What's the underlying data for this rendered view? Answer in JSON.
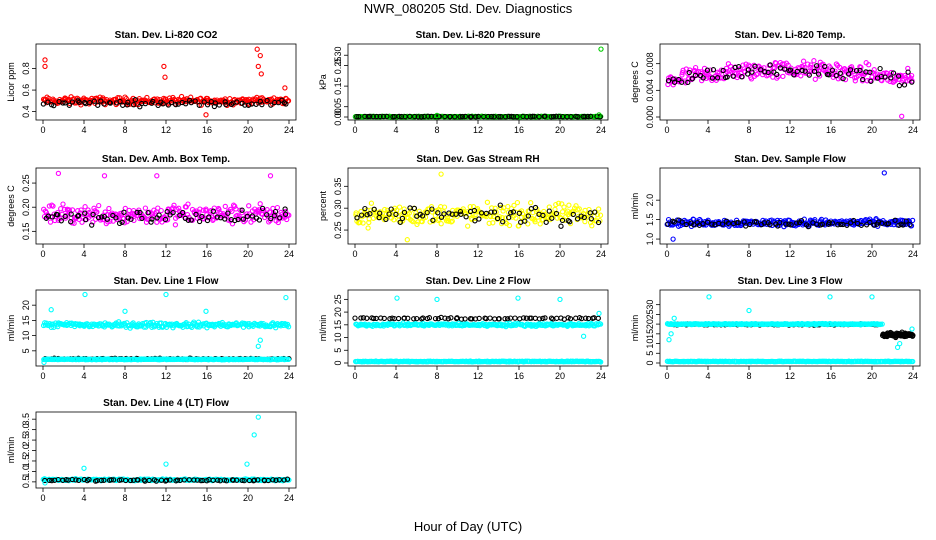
{
  "figure": {
    "title": "NWR_080205  Std. Dev. Diagnostics",
    "xlabel": "Hour of Day (UTC)"
  },
  "chart_data": [
    {
      "type": "scatter",
      "title": "Stan. Dev. Li-820 CO2",
      "ylabel": "Licor ppm",
      "xlim": [
        0,
        24
      ],
      "xticks": [
        "0",
        "4",
        "8",
        "12",
        "16",
        "20",
        "24"
      ],
      "yticks": [
        "0.4",
        "0.6",
        "0.8"
      ],
      "ylim": [
        0.35,
        1.0
      ],
      "colors": {
        "main": "#ff0000",
        "cal": "#000000"
      },
      "series": [
        {
          "role": "main",
          "base": 0.5,
          "spread": 0.05
        },
        {
          "role": "cal",
          "base": 0.48,
          "spread": 0.04
        }
      ],
      "outliers": [
        {
          "x": 0.2,
          "y": 0.88
        },
        {
          "x": 0.2,
          "y": 0.82
        },
        {
          "x": 11.8,
          "y": 0.82
        },
        {
          "x": 11.9,
          "y": 0.72
        },
        {
          "x": 20.9,
          "y": 0.98
        },
        {
          "x": 21.2,
          "y": 0.92
        },
        {
          "x": 21.0,
          "y": 0.82
        },
        {
          "x": 21.3,
          "y": 0.75
        },
        {
          "x": 15.9,
          "y": 0.37
        },
        {
          "x": 23.6,
          "y": 0.62
        }
      ]
    },
    {
      "type": "scatter",
      "title": "Stan. Dev. Li-820 Pressure",
      "ylabel": "kPa",
      "xlim": [
        0,
        24
      ],
      "xticks": [
        "0",
        "4",
        "8",
        "12",
        "16",
        "20",
        "24"
      ],
      "yticks": [
        "0.00",
        "0.05",
        "0.15",
        "0.25",
        "0.30"
      ],
      "ylim": [
        0,
        0.34
      ],
      "colors": {
        "main": "#00cc00",
        "cal": "#000000"
      },
      "series": [
        {
          "role": "main",
          "base": 0.002,
          "spread": 0.002
        },
        {
          "role": "cal",
          "base": 0.002,
          "spread": 0.002
        }
      ],
      "outliers": [
        {
          "x": 24.0,
          "y": 0.33
        },
        {
          "x": 8.0,
          "y": 0.008
        },
        {
          "x": 23.8,
          "y": 0.01
        }
      ]
    },
    {
      "type": "scatter",
      "title": "Stan. Dev. Li-820 Temp.",
      "ylabel": "degrees C",
      "xlim": [
        0,
        24
      ],
      "xticks": [
        "0",
        "4",
        "8",
        "12",
        "16",
        "20",
        "24"
      ],
      "yticks": [
        "0.000",
        "0.004",
        "0.008"
      ],
      "ylim": [
        0,
        0.0105
      ],
      "colors": {
        "main": "#ff00ff",
        "cal": "#000000"
      },
      "series": [
        {
          "role": "main",
          "base": 0.006,
          "spread": 0.002,
          "trend": "hump"
        },
        {
          "role": "cal",
          "base": 0.006,
          "spread": 0.0015,
          "trend": "hump"
        }
      ],
      "outliers": [
        {
          "x": 22.9,
          "y": 0.0001
        }
      ]
    },
    {
      "type": "scatter",
      "title": "Stan. Dev. Amb. Box Temp.",
      "ylabel": "degrees C",
      "xlim": [
        0,
        24
      ],
      "xticks": [
        "0",
        "4",
        "8",
        "12",
        "16",
        "20",
        "24"
      ],
      "yticks": [
        "0.15",
        "0.20",
        "0.25"
      ],
      "ylim": [
        0.13,
        0.275
      ],
      "colors": {
        "main": "#ff00ff",
        "cal": "#000000"
      },
      "series": [
        {
          "role": "main",
          "base": 0.185,
          "spread": 0.03
        },
        {
          "role": "cal",
          "base": 0.18,
          "spread": 0.022
        }
      ],
      "outliers": [
        {
          "x": 1.5,
          "y": 0.27
        },
        {
          "x": 6.0,
          "y": 0.265
        },
        {
          "x": 11.1,
          "y": 0.265
        },
        {
          "x": 22.2,
          "y": 0.265
        }
      ]
    },
    {
      "type": "scatter",
      "title": "Stan. Dev. Gas Stream RH",
      "ylabel": "percent",
      "xlim": [
        0,
        24
      ],
      "xticks": [
        "0",
        "4",
        "8",
        "12",
        "16",
        "20",
        "24"
      ],
      "yticks": [
        "0.25",
        "0.30",
        "0.35"
      ],
      "ylim": [
        0.225,
        0.385
      ],
      "colors": {
        "main": "#ffff00",
        "cal": "#000000"
      },
      "series": [
        {
          "role": "main",
          "base": 0.285,
          "spread": 0.035
        },
        {
          "role": "cal",
          "base": 0.285,
          "spread": 0.03
        }
      ],
      "outliers": [
        {
          "x": 5.1,
          "y": 0.228
        },
        {
          "x": 8.4,
          "y": 0.378
        }
      ]
    },
    {
      "type": "scatter",
      "title": "Stan. Dev. Sample Flow",
      "ylabel": "ml/min",
      "xlim": [
        0,
        24
      ],
      "xticks": [
        "0",
        "4",
        "8",
        "12",
        "16",
        "20",
        "24"
      ],
      "yticks": [
        "1.0",
        "1.5",
        "2.0"
      ],
      "ylim": [
        0.95,
        2.75
      ],
      "colors": {
        "main": "#0000ff",
        "cal": "#000000"
      },
      "series": [
        {
          "role": "main",
          "base": 1.42,
          "spread": 0.13
        },
        {
          "role": "cal",
          "base": 1.4,
          "spread": 0.1
        }
      ],
      "outliers": [
        {
          "x": 21.2,
          "y": 2.7
        },
        {
          "x": 0.6,
          "y": 1.0
        }
      ]
    },
    {
      "type": "scatter",
      "title": "Stan. Dev. Line 1 Flow",
      "ylabel": "ml/min",
      "xlim": [
        0,
        24
      ],
      "xticks": [
        "0",
        "4",
        "8",
        "12",
        "16",
        "20",
        "24"
      ],
      "yticks": [
        "5",
        "10",
        "15",
        "20"
      ],
      "ylim": [
        1,
        24
      ],
      "colors": {
        "main": "#00ffff",
        "cal": "#000000"
      },
      "series": [
        {
          "role": "main",
          "base": 13.5,
          "spread": 1.3
        },
        {
          "role": "cal",
          "base": 2.4,
          "spread": 0.3
        },
        {
          "role": "main",
          "base": 2.2,
          "spread": 0.2
        }
      ],
      "outliers": [
        {
          "x": 0.8,
          "y": 18.5
        },
        {
          "x": 4.1,
          "y": 23.5
        },
        {
          "x": 8.0,
          "y": 18.0
        },
        {
          "x": 12.0,
          "y": 23.5
        },
        {
          "x": 15.9,
          "y": 18.0
        },
        {
          "x": 21.0,
          "y": 6.5
        },
        {
          "x": 21.2,
          "y": 8.5
        },
        {
          "x": 23.7,
          "y": 22.5
        },
        {
          "x": 0.1,
          "y": 1.2
        }
      ]
    },
    {
      "type": "scatter",
      "title": "Stan. Dev. Line 2 Flow",
      "ylabel": "ml/min",
      "xlim": [
        0,
        24
      ],
      "xticks": [
        "0",
        "4",
        "8",
        "12",
        "16",
        "20",
        "24"
      ],
      "yticks": [
        "0",
        "5",
        "10",
        "15",
        "20",
        "25"
      ],
      "ylim": [
        0,
        27.5
      ],
      "colors": {
        "main": "#00ffff",
        "cal": "#000000"
      },
      "series": [
        {
          "role": "cal",
          "base": 17.5,
          "spread": 0.5
        },
        {
          "role": "main",
          "base": 15.0,
          "spread": 0.8
        },
        {
          "role": "main",
          "base": 0.6,
          "spread": 0.2
        }
      ],
      "outliers": [
        {
          "x": 4.1,
          "y": 25.5
        },
        {
          "x": 8.0,
          "y": 25.0
        },
        {
          "x": 15.9,
          "y": 25.5
        },
        {
          "x": 20.0,
          "y": 25.0
        },
        {
          "x": 23.8,
          "y": 19.5
        },
        {
          "x": 22.3,
          "y": 10.5
        }
      ]
    },
    {
      "type": "scatter",
      "title": "Stan. Dev. Line 3 Flow",
      "ylabel": "ml/min",
      "xlim": [
        0,
        24
      ],
      "xticks": [
        "0",
        "4",
        "8",
        "12",
        "16",
        "20",
        "24"
      ],
      "yticks": [
        "0",
        "5",
        "10",
        "15",
        "20",
        "25",
        "30"
      ],
      "ylim": [
        0,
        36
      ],
      "colors": {
        "main": "#00ffff",
        "cal": "#000000"
      },
      "series": [
        {
          "role": "cal",
          "base": 19.8,
          "spread": 0.5,
          "segment": [
            0.5,
            20.6
          ]
        },
        {
          "role": "cal",
          "base": 14.5,
          "spread": 1.5,
          "segment": [
            21.0,
            24
          ]
        },
        {
          "role": "main",
          "base": 20.0,
          "spread": 0.4,
          "segment": [
            0,
            21
          ]
        },
        {
          "role": "main",
          "base": 0.8,
          "spread": 0.2
        }
      ],
      "outliers": [
        {
          "x": 0.7,
          "y": 23.0
        },
        {
          "x": 4.1,
          "y": 34.0
        },
        {
          "x": 8.0,
          "y": 27.0
        },
        {
          "x": 15.9,
          "y": 34.0
        },
        {
          "x": 20.0,
          "y": 34.0
        },
        {
          "x": 22.5,
          "y": 8.0
        },
        {
          "x": 22.7,
          "y": 10.0
        },
        {
          "x": 0.2,
          "y": 12.0
        },
        {
          "x": 0.4,
          "y": 15.0
        },
        {
          "x": 23.9,
          "y": 17.5
        }
      ]
    },
    {
      "type": "scatter",
      "title": "Stan. Dev. Line 4 (LT) Flow",
      "ylabel": "ml/min",
      "xlim": [
        0,
        24
      ],
      "xticks": [
        "0",
        "4",
        "8",
        "12",
        "16",
        "20",
        "24"
      ],
      "yticks": [
        "0.5",
        "1.0",
        "1.5",
        "2.0",
        "2.5",
        "3.0",
        "3.5"
      ],
      "ylim": [
        0.35,
        3.7
      ],
      "colors": {
        "main": "#00ffff",
        "cal": "#000000"
      },
      "series": [
        {
          "role": "main",
          "base": 0.6,
          "spread": 0.06
        },
        {
          "role": "cal",
          "base": 0.58,
          "spread": 0.06
        }
      ],
      "outliers": [
        {
          "x": 4.0,
          "y": 1.15
        },
        {
          "x": 12.0,
          "y": 1.35
        },
        {
          "x": 19.9,
          "y": 1.35
        },
        {
          "x": 20.6,
          "y": 2.75
        },
        {
          "x": 21.0,
          "y": 3.6
        },
        {
          "x": 0.2,
          "y": 0.45
        }
      ]
    }
  ]
}
